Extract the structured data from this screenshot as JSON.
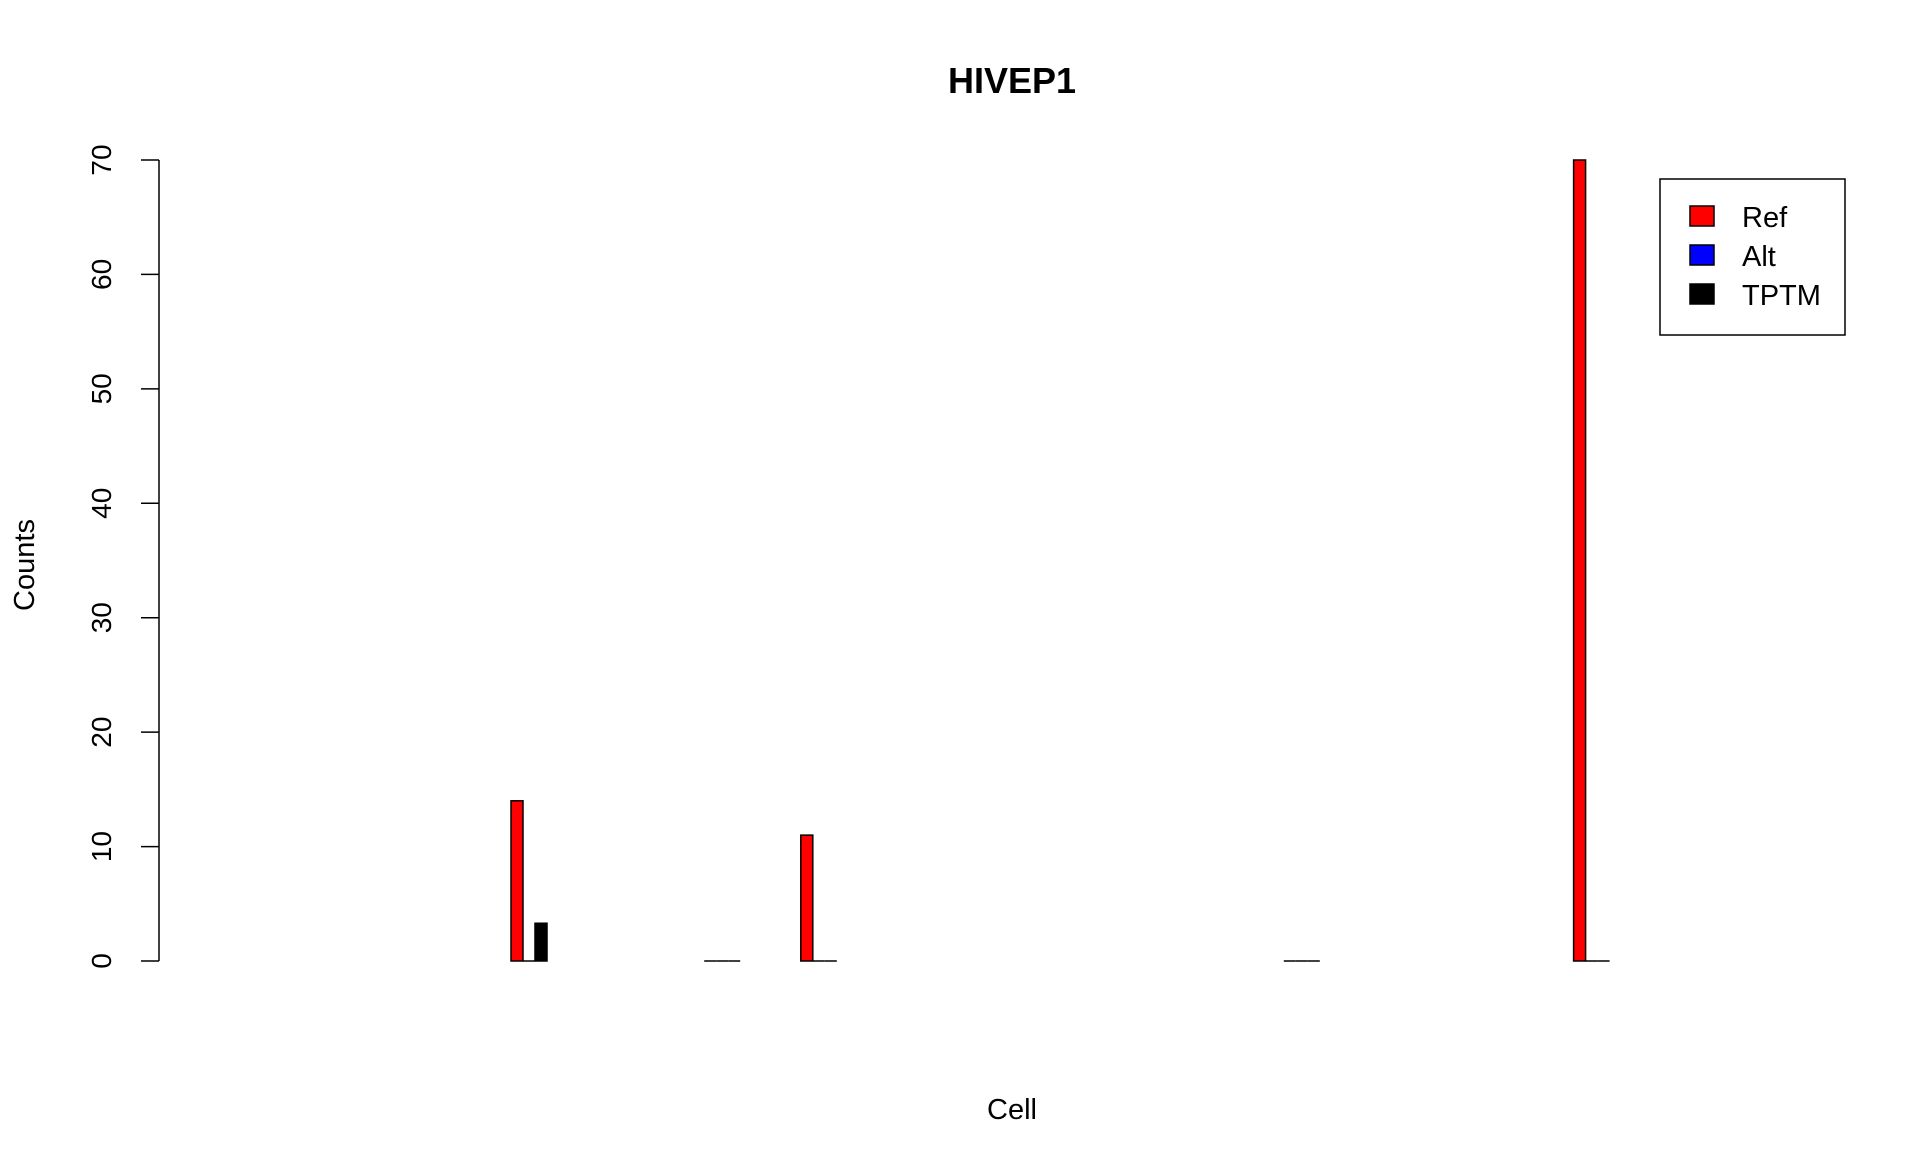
{
  "chart_data": {
    "type": "bar",
    "title": "HIVEP1",
    "xlabel": "Cell",
    "ylabel": "Counts",
    "ylim": [
      0,
      70
    ],
    "yticks": [
      0,
      10,
      20,
      30,
      40,
      50,
      60,
      70
    ],
    "grid": false,
    "legend_position": "top-right",
    "categories": [
      "",
      "",
      "",
      "",
      "",
      "",
      "",
      "",
      "",
      "",
      "",
      "",
      "",
      "",
      "",
      ""
    ],
    "series": [
      {
        "name": "Ref",
        "color": "#ff0000",
        "values": [
          0,
          0,
          0,
          14,
          0,
          0,
          11,
          0,
          0,
          0,
          0,
          0,
          0,
          0,
          70,
          0
        ]
      },
      {
        "name": "Alt",
        "color": "#0000ff",
        "values": [
          0,
          0,
          0,
          0,
          0,
          0,
          0,
          0,
          0,
          0,
          0,
          0,
          0,
          0,
          0,
          0
        ]
      },
      {
        "name": "TPTM",
        "color": "#000000",
        "values": [
          0,
          0,
          0,
          3.3,
          0,
          0,
          0,
          0,
          0,
          0,
          0,
          0,
          0,
          0,
          0,
          0
        ]
      }
    ],
    "visible_groups": [
      3,
      5,
      6,
      11,
      14
    ]
  }
}
